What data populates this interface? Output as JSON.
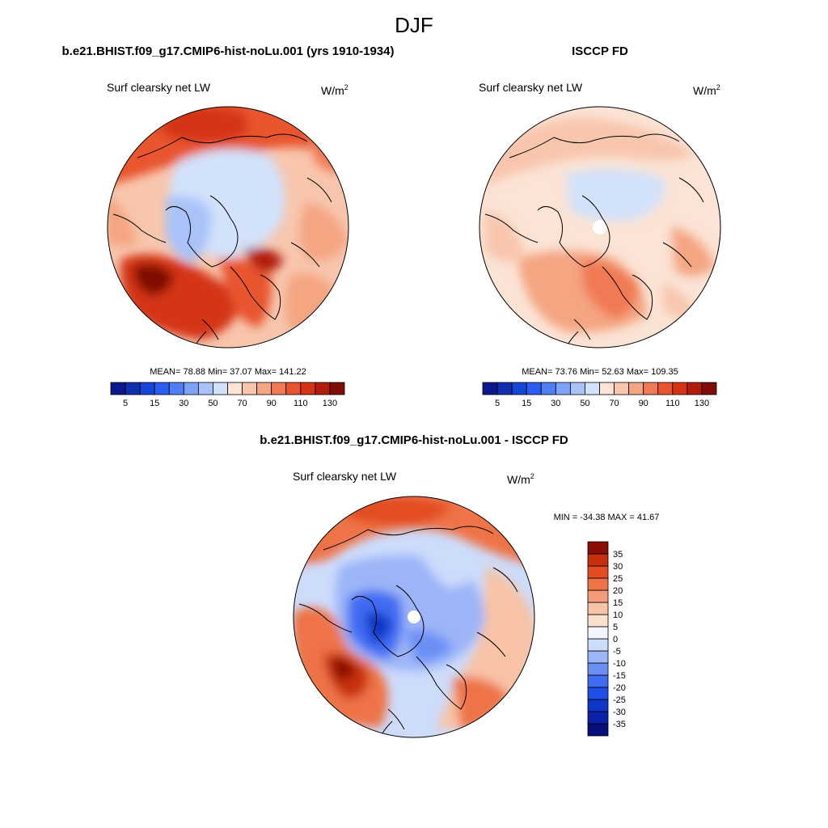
{
  "page": {
    "season": "DJF"
  },
  "chart_data": [
    {
      "type": "heatmap",
      "projection": "north polar stereographic",
      "title": "b.e21.BHIST.f09_g17.CMIP6-hist-noLu.001 (yrs 1910-1934)",
      "variable": "Surf clearsky net LW",
      "units_base": "W/m",
      "units_exp": "2",
      "stats_text": "MEAN=  78.88  Min=  37.07  Max= 141.22",
      "stats": {
        "mean": 78.88,
        "min": 37.07,
        "max": 141.22
      },
      "colorbar": {
        "orientation": "horizontal",
        "levels": [
          5,
          10,
          15,
          20,
          30,
          40,
          50,
          60,
          70,
          80,
          90,
          100,
          110,
          120,
          130
        ],
        "tick_labels": [
          "5",
          "15",
          "30",
          "50",
          "70",
          "90",
          "110",
          "130"
        ],
        "colors": [
          "#0a1a8c",
          "#0f2fb0",
          "#1446d8",
          "#2b5ef0",
          "#4f7ef5",
          "#7ea2f7",
          "#a9c3f9",
          "#d2e2fb",
          "#fbe3d5",
          "#f8c6ad",
          "#f4a582",
          "#f07a55",
          "#e8542d",
          "#d43414",
          "#b01e0a",
          "#7f0d03"
        ]
      },
      "regions": {
        "arctic_ocean_central": "45-60",
        "north_atlantic": "110-141",
        "north_pacific": "90-110",
        "continents": "60-80"
      }
    },
    {
      "type": "heatmap",
      "projection": "north polar stereographic",
      "title": "ISCCP FD",
      "variable": "Surf clearsky net LW",
      "units_base": "W/m",
      "units_exp": "2",
      "stats_text": "MEAN=  73.76  Min=  52.63  Max= 109.35",
      "stats": {
        "mean": 73.76,
        "min": 52.63,
        "max": 109.35
      },
      "colorbar": {
        "orientation": "horizontal",
        "levels": [
          5,
          10,
          15,
          20,
          30,
          40,
          50,
          60,
          70,
          80,
          90,
          100,
          110,
          120,
          130
        ],
        "tick_labels": [
          "5",
          "15",
          "30",
          "50",
          "70",
          "90",
          "110",
          "130"
        ],
        "colors": [
          "#0a1a8c",
          "#0f2fb0",
          "#1446d8",
          "#2b5ef0",
          "#4f7ef5",
          "#7ea2f7",
          "#a9c3f9",
          "#d2e2fb",
          "#fbe3d5",
          "#f8c6ad",
          "#f4a582",
          "#f07a55",
          "#e8542d",
          "#d43414",
          "#b01e0a",
          "#7f0d03"
        ]
      },
      "regions": {
        "arctic_ocean_central": "50-60",
        "north_atlantic": "80-100",
        "continents": "70-90"
      }
    },
    {
      "type": "heatmap",
      "projection": "north polar stereographic",
      "title": "b.e21.BHIST.f09_g17.CMIP6-hist-noLu.001 - ISCCP FD",
      "variable": "Surf clearsky net LW",
      "units_base": "W/m",
      "units_exp": "2",
      "stats_text": "MIN = -34.38 MAX =  41.67",
      "stats": {
        "min": -34.38,
        "max": 41.67
      },
      "colorbar": {
        "orientation": "vertical",
        "levels": [
          -35,
          -30,
          -25,
          -20,
          -15,
          -10,
          -5,
          0,
          5,
          10,
          15,
          20,
          25,
          30,
          35
        ],
        "tick_labels": [
          "-35",
          "-30",
          "-25",
          "-20",
          "-15",
          "-10",
          "-5",
          "0",
          "5",
          "10",
          "15",
          "20",
          "25",
          "30",
          "35"
        ],
        "colors": [
          "#080f7a",
          "#0a22a8",
          "#0f37c8",
          "#1e4fe6",
          "#3f6cf2",
          "#6b8ff5",
          "#9cb5f8",
          "#cddcfb",
          "#f2f5fd",
          "#fbe0d0",
          "#f8c3a6",
          "#f49c78",
          "#ee7346",
          "#e24d22",
          "#c7300c",
          "#8b0e02"
        ]
      },
      "regions": {
        "arctic_ocean_central": "-10 to -35",
        "north_atlantic": "20-41",
        "north_pacific": "15-30"
      }
    }
  ]
}
